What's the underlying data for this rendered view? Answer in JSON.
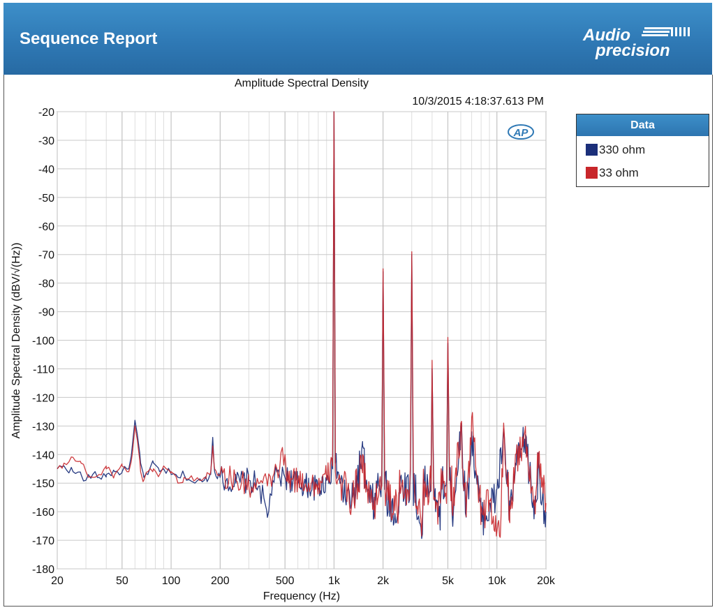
{
  "header": {
    "title": "Sequence Report",
    "logo_text_top": "Audio",
    "logo_text_bottom": "precision"
  },
  "legend": {
    "title": "Data",
    "items": [
      {
        "label": "330 ohm",
        "color": "#1b2f7a"
      },
      {
        "label": "33 ohm",
        "color": "#c8262a"
      }
    ]
  },
  "chart_data": {
    "type": "line",
    "title": "Amplitude Spectral Density",
    "timestamp": "10/3/2015 4:18:37.613 PM",
    "watermark": "AP",
    "xlabel": "Frequency (Hz)",
    "ylabel": "Amplitude Spectral Density (dBV/√(Hz))",
    "x_scale": "log",
    "xlim": [
      20,
      20000
    ],
    "ylim": [
      -180,
      -20
    ],
    "grid": true,
    "legend_position": "right",
    "x_ticks": [
      {
        "value": 20,
        "label": "20"
      },
      {
        "value": 50,
        "label": "50"
      },
      {
        "value": 100,
        "label": "100"
      },
      {
        "value": 200,
        "label": "200"
      },
      {
        "value": 500,
        "label": "500"
      },
      {
        "value": 1000,
        "label": "1k"
      },
      {
        "value": 2000,
        "label": "2k"
      },
      {
        "value": 5000,
        "label": "5k"
      },
      {
        "value": 10000,
        "label": "10k"
      },
      {
        "value": 20000,
        "label": "20k"
      }
    ],
    "y_ticks": [
      -20,
      -30,
      -40,
      -50,
      -60,
      -70,
      -80,
      -90,
      -100,
      -110,
      -120,
      -130,
      -140,
      -150,
      -160,
      -170,
      -180
    ],
    "noise_floor_db": -149,
    "series": [
      {
        "name": "330 ohm",
        "color": "#1b2f7a",
        "points": [
          [
            20,
            -145
          ],
          [
            22,
            -144
          ],
          [
            25,
            -146
          ],
          [
            28,
            -147
          ],
          [
            30,
            -149
          ],
          [
            33,
            -147
          ],
          [
            36,
            -148
          ],
          [
            40,
            -147
          ],
          [
            45,
            -146
          ],
          [
            50,
            -146
          ],
          [
            55,
            -145
          ],
          [
            58,
            -136
          ],
          [
            60,
            -128
          ],
          [
            62,
            -133
          ],
          [
            65,
            -143
          ],
          [
            68,
            -148
          ],
          [
            72,
            -147
          ],
          [
            78,
            -143
          ],
          [
            85,
            -146
          ],
          [
            90,
            -145
          ],
          [
            100,
            -147
          ],
          [
            110,
            -148
          ],
          [
            120,
            -147
          ],
          [
            140,
            -150
          ],
          [
            160,
            -149
          ],
          [
            175,
            -147
          ],
          [
            180,
            -134
          ],
          [
            185,
            -146
          ],
          [
            200,
            -148
          ],
          [
            250,
            -150
          ],
          [
            300,
            -149
          ],
          [
            350,
            -151
          ],
          [
            390,
            -162
          ],
          [
            420,
            -149
          ],
          [
            500,
            -148
          ],
          [
            600,
            -150
          ],
          [
            700,
            -151
          ],
          [
            800,
            -152
          ],
          [
            900,
            -149
          ],
          [
            980,
            -145
          ],
          [
            1000,
            -20
          ],
          [
            1020,
            -143
          ],
          [
            1100,
            -150
          ],
          [
            1300,
            -155
          ],
          [
            1500,
            -137
          ],
          [
            1600,
            -153
          ],
          [
            1800,
            -156
          ],
          [
            2000,
            -76
          ],
          [
            2100,
            -154
          ],
          [
            2500,
            -159
          ],
          [
            3000,
            -70
          ],
          [
            3200,
            -160
          ],
          [
            3500,
            -162
          ],
          [
            4000,
            -110
          ],
          [
            4200,
            -160
          ],
          [
            4500,
            -158
          ],
          [
            5000,
            -101
          ],
          [
            5300,
            -160
          ],
          [
            6000,
            -130
          ],
          [
            6500,
            -158
          ],
          [
            7000,
            -132
          ],
          [
            8000,
            -160
          ],
          [
            9000,
            -157
          ],
          [
            10000,
            -152
          ],
          [
            11000,
            -131
          ],
          [
            12000,
            -160
          ],
          [
            13000,
            -143
          ],
          [
            15000,
            -133
          ],
          [
            17000,
            -159
          ],
          [
            18000,
            -143
          ],
          [
            20000,
            -160
          ]
        ]
      },
      {
        "name": "33 ohm",
        "color": "#c8262a",
        "points": [
          [
            20,
            -145
          ],
          [
            22,
            -143
          ],
          [
            25,
            -141
          ],
          [
            28,
            -143
          ],
          [
            30,
            -146
          ],
          [
            33,
            -148
          ],
          [
            36,
            -147
          ],
          [
            40,
            -145
          ],
          [
            45,
            -147
          ],
          [
            50,
            -144
          ],
          [
            55,
            -146
          ],
          [
            58,
            -139
          ],
          [
            60,
            -130
          ],
          [
            62,
            -135
          ],
          [
            65,
            -146
          ],
          [
            68,
            -149
          ],
          [
            72,
            -146
          ],
          [
            78,
            -145
          ],
          [
            85,
            -147
          ],
          [
            90,
            -144
          ],
          [
            100,
            -146
          ],
          [
            110,
            -150
          ],
          [
            120,
            -148
          ],
          [
            140,
            -149
          ],
          [
            160,
            -148
          ],
          [
            175,
            -146
          ],
          [
            180,
            -137
          ],
          [
            185,
            -145
          ],
          [
            200,
            -147
          ],
          [
            250,
            -149
          ],
          [
            300,
            -151
          ],
          [
            350,
            -150
          ],
          [
            390,
            -151
          ],
          [
            420,
            -148
          ],
          [
            500,
            -140
          ],
          [
            510,
            -149
          ],
          [
            600,
            -149
          ],
          [
            700,
            -150
          ],
          [
            800,
            -151
          ],
          [
            900,
            -148
          ],
          [
            980,
            -144
          ],
          [
            1000,
            -20
          ],
          [
            1020,
            -146
          ],
          [
            1100,
            -149
          ],
          [
            1300,
            -154
          ],
          [
            1500,
            -140
          ],
          [
            1600,
            -152
          ],
          [
            1800,
            -157
          ],
          [
            2000,
            -75
          ],
          [
            2100,
            -153
          ],
          [
            2500,
            -158
          ],
          [
            3000,
            -69
          ],
          [
            3200,
            -159
          ],
          [
            3500,
            -160
          ],
          [
            4000,
            -107
          ],
          [
            4200,
            -159
          ],
          [
            4500,
            -157
          ],
          [
            5000,
            -99
          ],
          [
            5300,
            -158
          ],
          [
            6000,
            -129
          ],
          [
            6500,
            -157
          ],
          [
            7000,
            -127
          ],
          [
            8000,
            -158
          ],
          [
            9000,
            -156
          ],
          [
            10500,
            -168
          ],
          [
            11000,
            -129
          ],
          [
            12000,
            -158
          ],
          [
            13000,
            -140
          ],
          [
            15000,
            -132
          ],
          [
            17000,
            -156
          ],
          [
            18000,
            -140
          ],
          [
            20000,
            -157
          ]
        ]
      }
    ]
  }
}
